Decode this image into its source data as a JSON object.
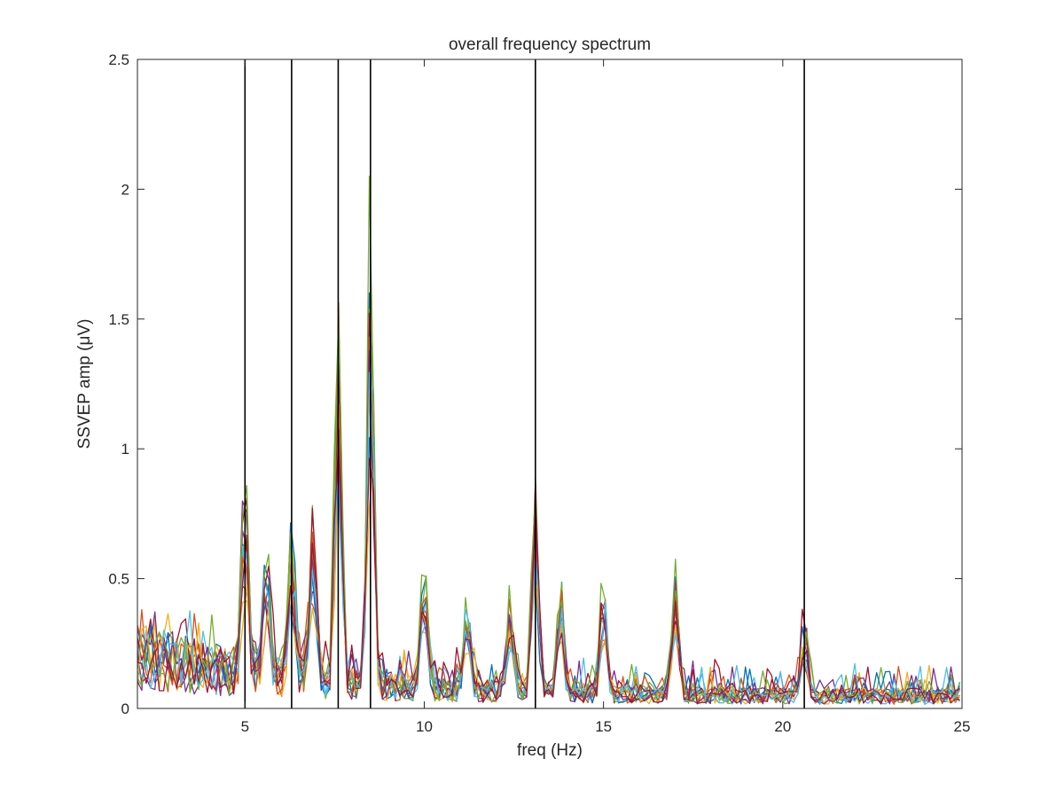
{
  "chart_data": {
    "type": "line",
    "title": "overall frequency spectrum",
    "xlabel": "freq (Hz)",
    "ylabel": "SSVEP amp (μV)",
    "xlim": [
      2,
      25
    ],
    "ylim": [
      0,
      2.5
    ],
    "x_ticks": [
      5,
      10,
      15,
      20,
      25
    ],
    "y_ticks": [
      0,
      0.5,
      1,
      1.5,
      2,
      2.5
    ],
    "x_tick_labels": [
      "5",
      "10",
      "15",
      "20",
      "25"
    ],
    "y_tick_labels": [
      "0",
      "0.5",
      "1",
      "1.5",
      "2",
      "2.5"
    ],
    "grid": false,
    "legend": "none",
    "vertical_markers": [
      5.0,
      6.3,
      7.6,
      8.5,
      13.1,
      20.6
    ],
    "vertical_marker_color": "#000000",
    "series_colors": [
      "#0072BD",
      "#D95319",
      "#EDB120",
      "#7E2F8E",
      "#77AC30",
      "#4DBEEE",
      "#A2142F"
    ],
    "peaks": [
      {
        "x": 5.0,
        "height": 0.62
      },
      {
        "x": 5.6,
        "height": 0.42
      },
      {
        "x": 6.3,
        "height": 0.5
      },
      {
        "x": 6.9,
        "height": 0.5
      },
      {
        "x": 7.6,
        "height": 1.2
      },
      {
        "x": 8.5,
        "height": 1.45
      },
      {
        "x": 10.0,
        "height": 0.38
      },
      {
        "x": 11.2,
        "height": 0.28
      },
      {
        "x": 12.4,
        "height": 0.3
      },
      {
        "x": 13.1,
        "height": 0.7
      },
      {
        "x": 13.8,
        "height": 0.35
      },
      {
        "x": 15.0,
        "height": 0.36
      },
      {
        "x": 17.0,
        "height": 0.38
      },
      {
        "x": 20.6,
        "height": 0.22
      }
    ],
    "series": [
      {
        "color": "#0072BD",
        "scale": 1.05,
        "seed": 3
      },
      {
        "color": "#D95319",
        "scale": 0.95,
        "seed": 7
      },
      {
        "color": "#EDB120",
        "scale": 0.75,
        "seed": 11
      },
      {
        "color": "#7E2F8E",
        "scale": 0.85,
        "seed": 13
      },
      {
        "color": "#77AC30",
        "scale": 1.15,
        "seed": 17
      },
      {
        "color": "#4DBEEE",
        "scale": 0.9,
        "seed": 19
      },
      {
        "color": "#A2142F",
        "scale": 1.0,
        "seed": 23
      },
      {
        "color": "#0072BD",
        "scale": 0.8,
        "seed": 29
      },
      {
        "color": "#D95319",
        "scale": 0.88,
        "seed": 31
      },
      {
        "color": "#EDB120",
        "scale": 0.7,
        "seed": 37
      },
      {
        "color": "#7E2F8E",
        "scale": 1.08,
        "seed": 41
      },
      {
        "color": "#77AC30",
        "scale": 1.25,
        "seed": 43
      },
      {
        "color": "#4DBEEE",
        "scale": 0.78,
        "seed": 47
      },
      {
        "color": "#A2142F",
        "scale": 0.92,
        "seed": 53
      }
    ]
  }
}
